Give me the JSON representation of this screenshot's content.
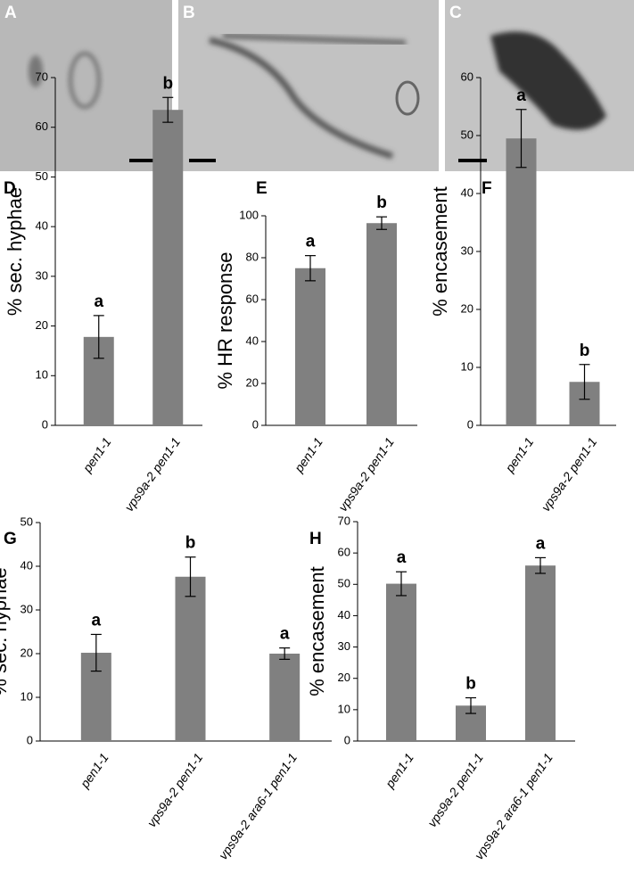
{
  "micrographs": [
    "A",
    "B",
    "C"
  ],
  "chart_data": [
    {
      "type": "bar",
      "panel": "D",
      "y_label": "% sec. hyphae",
      "categories": [
        "pen1-1",
        "vps9a-2 pen1-1"
      ],
      "values": [
        17.8,
        63.5
      ],
      "errors": [
        4.3,
        2.5
      ],
      "annotations": [
        "a",
        "b"
      ],
      "color": "#808080",
      "ylim": [
        0,
        70
      ],
      "yticks": [
        0,
        10,
        20,
        30,
        40,
        50,
        60,
        70
      ]
    },
    {
      "type": "bar",
      "panel": "E",
      "y_label": "% HR response",
      "categories": [
        "pen1-1",
        "vps9a-2 pen1-1"
      ],
      "values": [
        75,
        96.5
      ],
      "errors": [
        6,
        3
      ],
      "annotations": [
        "a",
        "b"
      ],
      "color": "#808080",
      "ylim": [
        0,
        100
      ],
      "yticks": [
        0,
        20,
        40,
        60,
        80,
        100
      ]
    },
    {
      "type": "bar",
      "panel": "F",
      "y_label": "% encasement",
      "categories": [
        "pen1-1",
        "vps9a-2 pen1-1"
      ],
      "values": [
        49.5,
        7.5
      ],
      "errors": [
        5,
        3
      ],
      "annotations": [
        "a",
        "b"
      ],
      "color": "#808080",
      "ylim": [
        0,
        60
      ],
      "yticks": [
        0,
        10,
        20,
        30,
        40,
        50,
        60
      ]
    },
    {
      "type": "bar",
      "panel": "G",
      "y_label": "% sec. hyphae",
      "categories": [
        "pen1-1",
        "vps9a-2 pen1-1",
        "vps9a-2 ara6-1 pen1-1"
      ],
      "values": [
        20.2,
        37.6,
        20
      ],
      "errors": [
        4.2,
        4.5,
        1.3
      ],
      "annotations": [
        "a",
        "b",
        "a"
      ],
      "color": "#808080",
      "ylim": [
        0,
        50
      ],
      "yticks": [
        0,
        10,
        20,
        30,
        40,
        50
      ]
    },
    {
      "type": "bar",
      "panel": "H",
      "y_label": "% encasement",
      "categories": [
        "pen1-1",
        "vps9a-2 pen1-1",
        "vps9a-2 ara6-1 pen1-1"
      ],
      "values": [
        50.2,
        11.3,
        56
      ],
      "errors": [
        3.8,
        2.5,
        2.5
      ],
      "annotations": [
        "a",
        "b",
        "a"
      ],
      "color": "#808080",
      "ylim": [
        0,
        70
      ],
      "yticks": [
        0,
        10,
        20,
        30,
        40,
        50,
        60,
        70
      ]
    }
  ]
}
